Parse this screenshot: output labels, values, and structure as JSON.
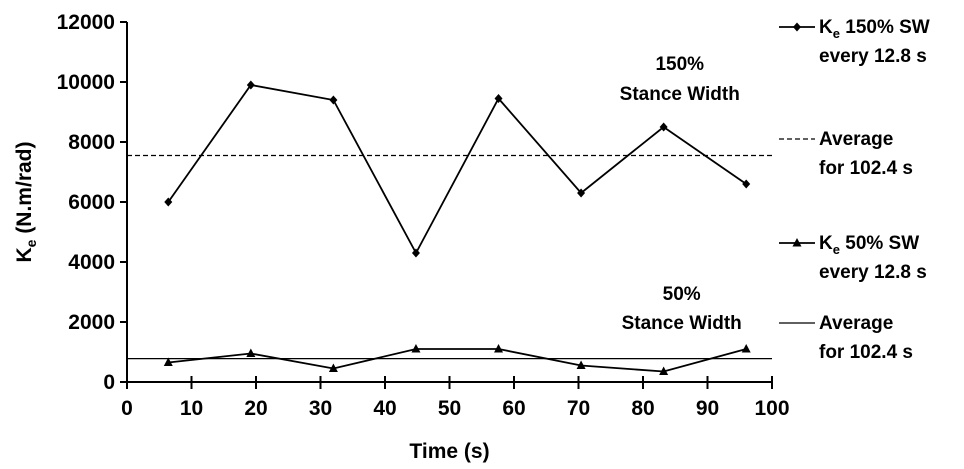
{
  "chart_data": {
    "type": "line",
    "xlabel": "Time (s)",
    "ylabel_main": "K",
    "ylabel_sub": "e",
    "ylabel_unit": " (N.m/rad)",
    "xlim": [
      0,
      100
    ],
    "ylim": [
      0,
      12000
    ],
    "x_ticks": [
      0,
      10,
      20,
      30,
      40,
      50,
      60,
      70,
      80,
      90,
      100
    ],
    "y_ticks": [
      0,
      2000,
      4000,
      6000,
      8000,
      10000,
      12000
    ],
    "grid": false,
    "legend_position": "right",
    "series": [
      {
        "key": "k150",
        "name_main": "K",
        "name_sub": "e",
        "name_rest": " 150% SW",
        "name_line2": "every 12.8 s",
        "marker": "diamond",
        "line": "solid",
        "x": [
          6.4,
          19.2,
          32.0,
          44.8,
          57.6,
          70.4,
          83.2,
          96.0
        ],
        "y": [
          6000,
          9900,
          9400,
          4300,
          9450,
          6300,
          8500,
          6600
        ]
      },
      {
        "key": "avg150",
        "name_main": "Average",
        "name_line2": "for 102.4 s",
        "marker": "none",
        "line": "dashed",
        "x": [
          0,
          100
        ],
        "y": [
          7550,
          7550
        ]
      },
      {
        "key": "k50",
        "name_main": "K",
        "name_sub": "e",
        "name_rest": " 50% SW",
        "name_line2": "every 12.8 s",
        "marker": "triangle",
        "line": "solid",
        "x": [
          6.4,
          19.2,
          32.0,
          44.8,
          57.6,
          70.4,
          83.2,
          96.0
        ],
        "y": [
          650,
          950,
          450,
          1100,
          1100,
          550,
          350,
          1100
        ]
      },
      {
        "key": "avg50",
        "name_main": "Average",
        "name_line2": "for 102.4 s",
        "marker": "none",
        "line": "thin-solid",
        "x": [
          0,
          100
        ],
        "y": [
          780,
          780
        ]
      }
    ],
    "annotations": [
      {
        "key": "ann150",
        "line1": "150%",
        "line2": "Stance Width"
      },
      {
        "key": "ann50",
        "line1": "50%",
        "line2": "Stance Width"
      }
    ]
  }
}
